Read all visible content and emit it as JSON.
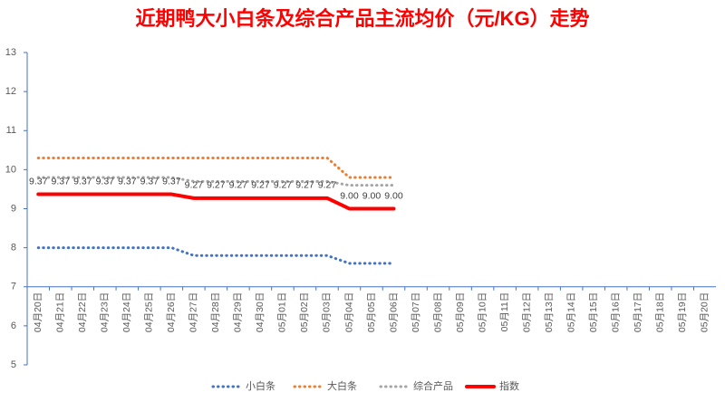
{
  "chart_data": {
    "type": "line",
    "title": "近期鸭大小白条及综合产品主流均价（元/KG）走势",
    "categories": [
      "04月20日",
      "04月21日",
      "04月22日",
      "04月23日",
      "04月24日",
      "04月25日",
      "04月26日",
      "04月27日",
      "04月28日",
      "04月29日",
      "04月30日",
      "05月01日",
      "05月02日",
      "05月03日",
      "05月04日",
      "05月05日",
      "05月06日",
      "05月07日",
      "05月08日",
      "05月09日",
      "05月10日",
      "05月11日",
      "05月12日",
      "05月13日",
      "05月14日",
      "05月15日",
      "05月16日",
      "05月17日",
      "05月18日",
      "05月19日",
      "05月20日"
    ],
    "series": [
      {
        "name": "小白条",
        "color": "#4472c4",
        "line_style": "dotted",
        "values": [
          8.0,
          8.0,
          8.0,
          8.0,
          8.0,
          8.0,
          8.0,
          7.8,
          7.8,
          7.8,
          7.8,
          7.8,
          7.8,
          7.8,
          7.6,
          7.6,
          7.6,
          null,
          null,
          null,
          null,
          null,
          null,
          null,
          null,
          null,
          null,
          null,
          null,
          null,
          null
        ]
      },
      {
        "name": "大白条",
        "color": "#ed7d31",
        "line_style": "dotted",
        "values": [
          10.3,
          10.3,
          10.3,
          10.3,
          10.3,
          10.3,
          10.3,
          10.3,
          10.3,
          10.3,
          10.3,
          10.3,
          10.3,
          10.3,
          9.8,
          9.8,
          9.8,
          null,
          null,
          null,
          null,
          null,
          null,
          null,
          null,
          null,
          null,
          null,
          null,
          null,
          null
        ]
      },
      {
        "name": "综合产品",
        "color": "#a5a5a5",
        "line_style": "dotted",
        "values": [
          9.8,
          9.8,
          9.8,
          9.8,
          9.8,
          9.8,
          9.8,
          9.7,
          9.7,
          9.7,
          9.7,
          9.7,
          9.7,
          9.7,
          9.6,
          9.6,
          9.6,
          null,
          null,
          null,
          null,
          null,
          null,
          null,
          null,
          null,
          null,
          null,
          null,
          null,
          null
        ]
      },
      {
        "name": "指数",
        "color": "#ff0000",
        "line_style": "solid",
        "values": [
          9.37,
          9.37,
          9.37,
          9.37,
          9.37,
          9.37,
          9.37,
          9.27,
          9.27,
          9.27,
          9.27,
          9.27,
          9.27,
          9.27,
          9.0,
          9.0,
          9.0,
          null,
          null,
          null,
          null,
          null,
          null,
          null,
          null,
          null,
          null,
          null,
          null,
          null,
          null
        ],
        "value_labels": [
          "9.37",
          "9.37",
          "9.37",
          "9.37",
          "9.37",
          "9.37",
          "9.37",
          "9.27",
          "9.27",
          "9.27",
          "9.27",
          "9.27",
          "9.27",
          "9.27",
          "9.00",
          "9.00",
          "9.00",
          null,
          null,
          null,
          null,
          null,
          null,
          null,
          null,
          null,
          null,
          null,
          null,
          null,
          null
        ]
      }
    ],
    "ylim": [
      5,
      13
    ],
    "yticks": [
      5,
      6,
      7,
      8,
      9,
      10,
      11,
      12,
      13
    ],
    "x_axis_at": 7,
    "legend": "bottom"
  }
}
